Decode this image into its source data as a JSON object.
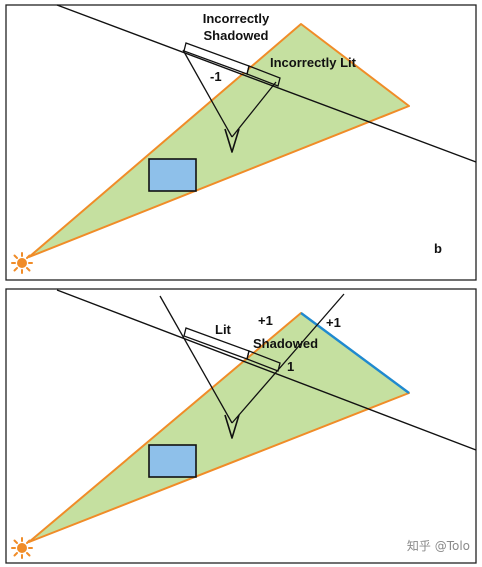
{
  "panel_top": {
    "labels": {
      "incorrectly_shadowed": [
        "Incorrectly",
        "Shadowed"
      ],
      "incorrectly_lit": "Incorrectly Lit",
      "count": "-1",
      "panel_letter": "b"
    }
  },
  "panel_bottom": {
    "labels": {
      "lit": "Lit",
      "shadowed": "Shadowed",
      "plus_one_a": "+1",
      "plus_one_b": "+1",
      "one": "1"
    }
  },
  "watermark": "知乎 @Tolo",
  "colors": {
    "frustum_fill": "#c5e0a0",
    "frustum_edge": "#f08c28",
    "occluder_fill": "#8ec0ea",
    "highlight_edge": "#1f8ad0",
    "line": "#111111",
    "sun": "#f08c28"
  },
  "icons": {
    "light": "sun-icon",
    "eye": "eye-icon"
  }
}
